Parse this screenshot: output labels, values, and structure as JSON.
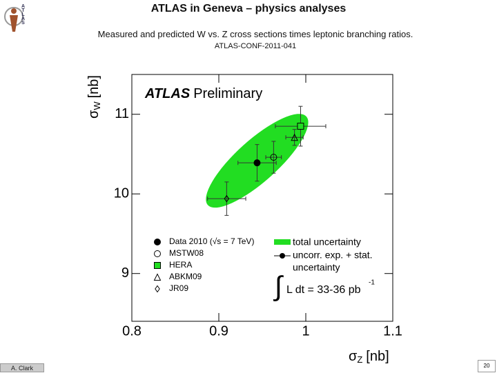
{
  "header": {
    "title": "ATLAS in Geneva – physics analyses",
    "subtitle": "Measured and predicted W vs. Z cross sections times leptonic branching ratios.",
    "reference": "ATLAS-CONF-2011-041",
    "logo_text": "ATLAS"
  },
  "footer": {
    "author": "A. Clark",
    "page": "20"
  },
  "chart_data": {
    "type": "scatter",
    "experiment_label": {
      "bold": "ATLAS",
      "normal": "Preliminary"
    },
    "x_label": {
      "symbol": "σ",
      "subscript": "Z",
      "unit": "[nb]"
    },
    "y_label": {
      "symbol": "σ",
      "subscript": "W",
      "unit": "[nb]"
    },
    "xlim": [
      0.8,
      1.1
    ],
    "ylim": [
      8.4,
      11.5
    ],
    "xticks": [
      0.8,
      0.9,
      1,
      1.1
    ],
    "yticks": [
      9,
      10,
      11
    ],
    "band_legend": {
      "name": "total uncertainty",
      "color": "#22dd22"
    },
    "bar_legend": {
      "lines": [
        "uncorr. exp. + stat.",
        "uncertainty"
      ]
    },
    "luminosity": {
      "integral": "∫",
      "text": "L dt = 33-36 pb",
      "superscript": "-1"
    },
    "series": [
      {
        "name": "Data 2010 (√s = 7 TeV)",
        "marker": "filled-circle",
        "color": "#000000",
        "x": [
          0.944
        ],
        "values": [
          10.39
        ],
        "x_errors": [
          0.022
        ],
        "y_errors": [
          0.23
        ]
      },
      {
        "name": "MSTW08",
        "marker": "circle",
        "color": "#000000",
        "x": [
          0.963
        ],
        "values": [
          10.46
        ],
        "x_errors": [
          0.009
        ],
        "y_errors": [
          0.2
        ]
      },
      {
        "name": "HERA",
        "marker": "square",
        "color": "#22dd22",
        "x": [
          0.994
        ],
        "values": [
          10.85
        ],
        "x_errors": [
          0.029
        ],
        "y_errors": [
          0.25
        ]
      },
      {
        "name": "ABKM09",
        "marker": "triangle",
        "color": "#000000",
        "x": [
          0.987
        ],
        "values": [
          10.71
        ],
        "x_errors": [
          0.01
        ],
        "y_errors": [
          0.1
        ]
      },
      {
        "name": "JR09",
        "marker": "diamond",
        "color": "#000000",
        "x": [
          0.909
        ],
        "values": [
          9.94
        ],
        "x_errors": [
          0.022
        ],
        "y_errors": [
          0.21
        ]
      }
    ]
  }
}
